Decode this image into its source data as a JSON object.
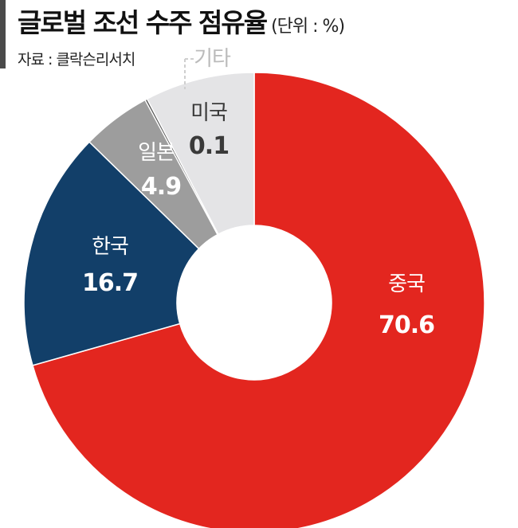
{
  "header": {
    "title": "글로벌 조선 수주 점유율",
    "unit": "(단위 : %)",
    "source": "자료 : 클락슨리서치"
  },
  "chart_data": {
    "type": "pie",
    "donut": true,
    "title": "글로벌 조선 수주 점유율",
    "unit": "(단위 : %)",
    "start": "12 o'clock, clockwise",
    "slices": [
      {
        "label": "중국",
        "value": "70.6",
        "color": "#e3261f",
        "text_color": "#ffffff"
      },
      {
        "label": "한국",
        "value": "16.7",
        "color": "#123f69",
        "text_color": "#ffffff"
      },
      {
        "label": "일본",
        "value": "4.9",
        "color": "#9d9d9d",
        "text_color": "#ffffff"
      },
      {
        "label": "미국",
        "value": "0.1",
        "color": "#555555",
        "text_color": "#3a3a3a"
      },
      {
        "label": "기타",
        "value": "",
        "color": "#e4e4e6",
        "text_color": "#bbbbbb"
      }
    ]
  }
}
